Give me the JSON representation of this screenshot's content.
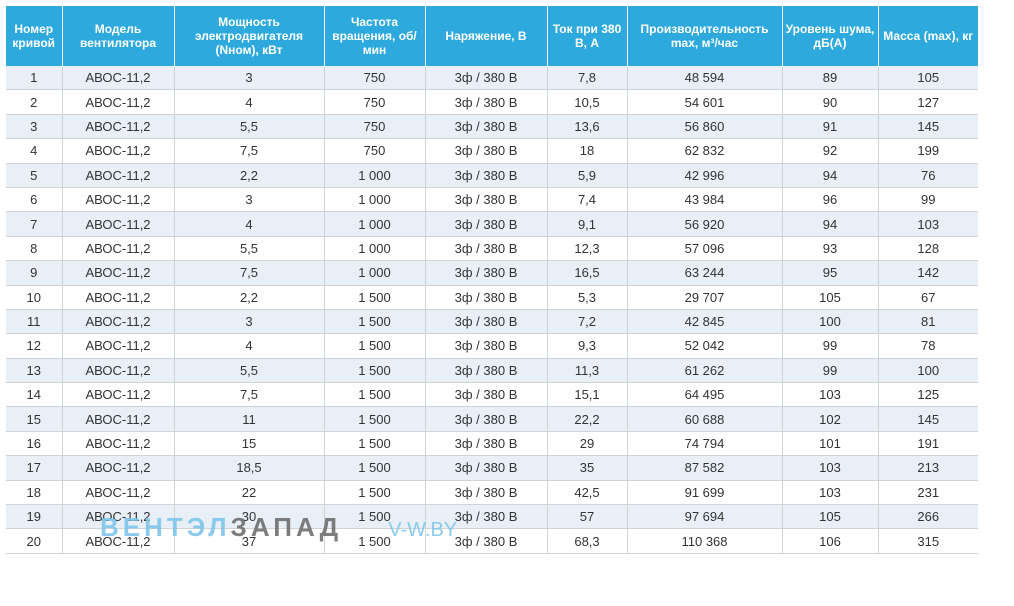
{
  "headers": [
    "Номер кривой",
    "Модель вентилятора",
    "Мощность электродвигателя (Nном), кВт",
    "Частота вращения, об/мин",
    "Наряжение, В",
    "Ток при 380 В, А",
    "Производительность max, м³/час",
    "Уровень шума, дБ(А)",
    "Масса (max), кг"
  ],
  "rows": [
    [
      "1",
      "АВОС-11,2",
      "3",
      "750",
      "3ф / 380 В",
      "7,8",
      "48 594",
      "89",
      "105"
    ],
    [
      "2",
      "АВОС-11,2",
      "4",
      "750",
      "3ф / 380 В",
      "10,5",
      "54 601",
      "90",
      "127"
    ],
    [
      "3",
      "АВОС-11,2",
      "5,5",
      "750",
      "3ф / 380 В",
      "13,6",
      "56 860",
      "91",
      "145"
    ],
    [
      "4",
      "АВОС-11,2",
      "7,5",
      "750",
      "3ф / 380 В",
      "18",
      "62 832",
      "92",
      "199"
    ],
    [
      "5",
      "АВОС-11,2",
      "2,2",
      "1 000",
      "3ф / 380 В",
      "5,9",
      "42 996",
      "94",
      "76"
    ],
    [
      "6",
      "АВОС-11,2",
      "3",
      "1 000",
      "3ф / 380 В",
      "7,4",
      "43 984",
      "96",
      "99"
    ],
    [
      "7",
      "АВОС-11,2",
      "4",
      "1 000",
      "3ф / 380 В",
      "9,1",
      "56 920",
      "94",
      "103"
    ],
    [
      "8",
      "АВОС-11,2",
      "5,5",
      "1 000",
      "3ф / 380 В",
      "12,3",
      "57 096",
      "93",
      "128"
    ],
    [
      "9",
      "АВОС-11,2",
      "7,5",
      "1 000",
      "3ф / 380 В",
      "16,5",
      "63 244",
      "95",
      "142"
    ],
    [
      "10",
      "АВОС-11,2",
      "2,2",
      "1 500",
      "3ф / 380 В",
      "5,3",
      "29 707",
      "105",
      "67"
    ],
    [
      "11",
      "АВОС-11,2",
      "3",
      "1 500",
      "3ф / 380 В",
      "7,2",
      "42 845",
      "100",
      "81"
    ],
    [
      "12",
      "АВОС-11,2",
      "4",
      "1 500",
      "3ф / 380 В",
      "9,3",
      "52 042",
      "99",
      "78"
    ],
    [
      "13",
      "АВОС-11,2",
      "5,5",
      "1 500",
      "3ф / 380 В",
      "11,3",
      "61 262",
      "99",
      "100"
    ],
    [
      "14",
      "АВОС-11,2",
      "7,5",
      "1 500",
      "3ф / 380 В",
      "15,1",
      "64 495",
      "103",
      "125"
    ],
    [
      "15",
      "АВОС-11,2",
      "11",
      "1 500",
      "3ф / 380 В",
      "22,2",
      "60 688",
      "102",
      "145"
    ],
    [
      "16",
      "АВОС-11,2",
      "15",
      "1 500",
      "3ф / 380 В",
      "29",
      "74 794",
      "101",
      "191"
    ],
    [
      "17",
      "АВОС-11,2",
      "18,5",
      "1 500",
      "3ф / 380 В",
      "35",
      "87 582",
      "103",
      "213"
    ],
    [
      "18",
      "АВОС-11,2",
      "22",
      "1 500",
      "3ф / 380 В",
      "42,5",
      "91 699",
      "103",
      "231"
    ],
    [
      "19",
      "АВОС-11,2",
      "30",
      "1 500",
      "3ф / 380 В",
      "57",
      "97 694",
      "105",
      "266"
    ],
    [
      "20",
      "АВОС-11,2",
      "37",
      "1 500",
      "3ф / 380 В",
      "68,3",
      "110 368",
      "106",
      "315"
    ]
  ],
  "watermark": {
    "part1": "ВЕНТЭЛ",
    "part2": "ЗАПАД",
    "part3": "V-W.BY"
  },
  "colors": {
    "header_bg": "#2ea9de",
    "odd_row_bg": "#e8eff7",
    "grid": "#cfd3d6"
  }
}
